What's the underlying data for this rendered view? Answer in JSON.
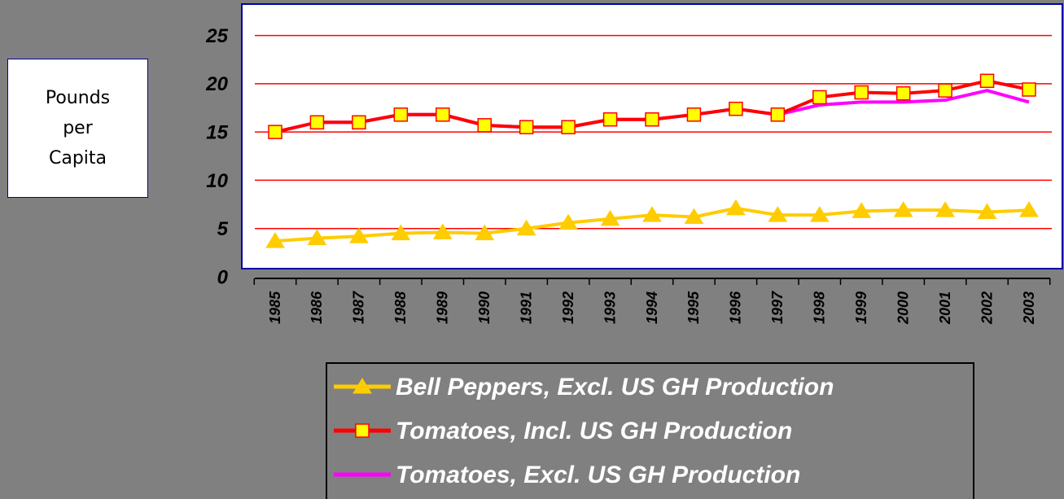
{
  "chart_data": {
    "type": "line",
    "ylabel": "Pounds per Capita",
    "categories": [
      "1985",
      "1986",
      "1987",
      "1988",
      "1989",
      "1990",
      "1991",
      "1992",
      "1993",
      "1994",
      "1995",
      "1996",
      "1997",
      "1998",
      "1999",
      "2000",
      "2001",
      "2002",
      "2003"
    ],
    "series": [
      {
        "name": "Bell Peppers, Excl. US GH Production",
        "color": "#ffcc00",
        "marker": "triangle",
        "values": [
          3.7,
          4.0,
          4.2,
          4.5,
          4.6,
          4.5,
          5.0,
          5.6,
          6.0,
          6.4,
          6.2,
          7.1,
          6.4,
          6.4,
          6.8,
          6.9,
          6.9,
          6.7,
          6.9
        ]
      },
      {
        "name": "Tomatoes, Incl. US GH Production",
        "color": "#ff0000",
        "marker": "square",
        "values": [
          15.0,
          16.0,
          16.0,
          16.8,
          16.8,
          15.7,
          15.5,
          15.5,
          16.3,
          16.3,
          16.8,
          17.4,
          16.8,
          18.6,
          19.1,
          19.0,
          19.3,
          20.3,
          19.4
        ]
      },
      {
        "name": "Tomatoes, Excl. US GH Production",
        "color": "#ff00ff",
        "marker": "none",
        "values": [
          15.0,
          16.0,
          16.0,
          16.8,
          16.8,
          15.7,
          15.5,
          15.5,
          16.3,
          16.3,
          16.8,
          17.4,
          16.8,
          17.8,
          18.1,
          18.1,
          18.3,
          19.3,
          18.1
        ]
      }
    ],
    "ylim": [
      0,
      28
    ],
    "yticks": [
      0,
      5,
      10,
      15,
      20,
      25
    ],
    "grid": true,
    "grid_color": "#ff0000"
  }
}
